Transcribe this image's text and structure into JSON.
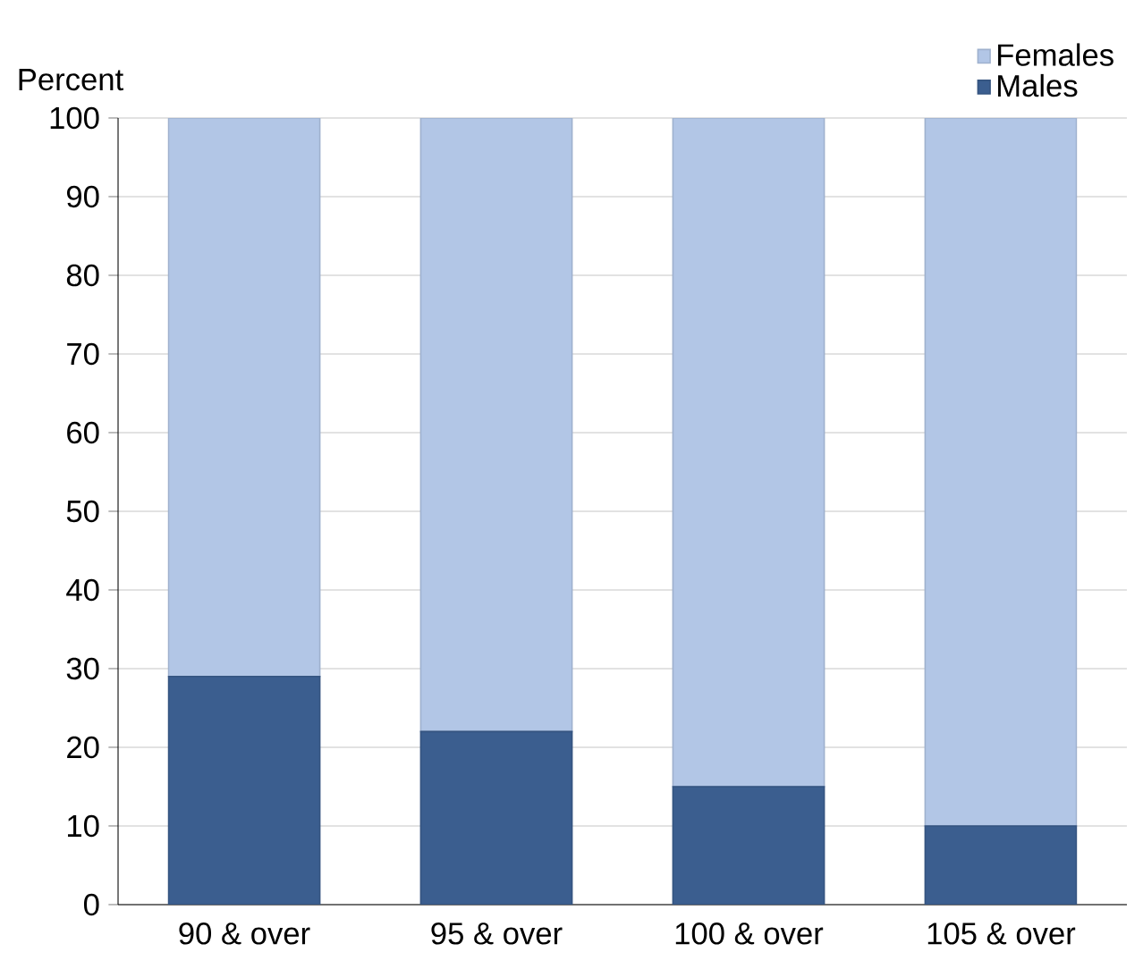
{
  "chart_data": {
    "type": "bar",
    "stacked": true,
    "ylabel": "Percent",
    "categories": [
      "90 & over",
      "95 & over",
      "100 & over",
      "105 & over"
    ],
    "series": [
      {
        "name": "Males",
        "color": "#3b5e8f",
        "values": [
          29,
          22,
          15,
          10
        ]
      },
      {
        "name": "Females",
        "color": "#b2c6e6",
        "values": [
          71,
          78,
          85,
          90
        ]
      }
    ],
    "ylim": [
      0,
      100
    ],
    "yticks": [
      0,
      10,
      20,
      30,
      40,
      50,
      60,
      70,
      80,
      90,
      100
    ],
    "grid": "y",
    "legend": "top right"
  }
}
